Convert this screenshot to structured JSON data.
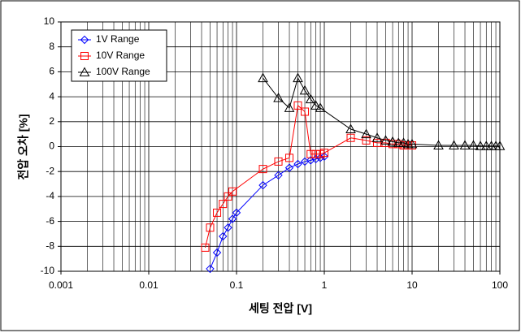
{
  "chart_data": {
    "type": "line",
    "x_label": "세팅 전압 [V]",
    "y_label": "전압 오차 [%]",
    "xlim": [
      0.001,
      100
    ],
    "xticks": [
      0.001,
      0.01,
      0.1,
      1,
      10,
      100
    ],
    "xscale": "log",
    "ylim": [
      -10,
      10
    ],
    "yticks": [
      -10,
      -8,
      -6,
      -4,
      -2,
      0,
      2,
      4,
      6,
      8,
      10
    ],
    "grid": true,
    "minor_grid": true,
    "legend": "upper left",
    "series": [
      {
        "name": "1V Range",
        "color": "#0000ff",
        "marker": "diamond",
        "x": [
          0.05,
          0.06,
          0.07,
          0.08,
          0.09,
          0.1,
          0.2,
          0.3,
          0.4,
          0.5,
          0.6,
          0.7,
          0.8,
          0.9,
          1.0
        ],
        "values": [
          -9.8,
          -8.5,
          -7.2,
          -6.5,
          -5.8,
          -5.3,
          -3.1,
          -2.3,
          -1.7,
          -1.4,
          -1.2,
          -1.1,
          -1.0,
          -0.9,
          -0.8
        ]
      },
      {
        "name": "10V Range",
        "color": "#ff0000",
        "marker": "square",
        "x": [
          0.044,
          0.05,
          0.06,
          0.07,
          0.08,
          0.09,
          0.2,
          0.3,
          0.4,
          0.5,
          0.6,
          0.7,
          0.8,
          0.9,
          1.0,
          2,
          3,
          4,
          5,
          6,
          7,
          8,
          9,
          10
        ],
        "values": [
          -8.1,
          -6.5,
          -5.3,
          -4.6,
          -4.0,
          -3.6,
          -1.8,
          -1.2,
          -0.9,
          3.3,
          2.8,
          -0.6,
          -0.6,
          -0.6,
          -0.5,
          0.7,
          0.5,
          0.3,
          0.3,
          0.2,
          0.2,
          0.1,
          0.1,
          0.1
        ]
      },
      {
        "name": "100V Range",
        "color": "#000000",
        "marker": "triangle",
        "x": [
          0.2,
          0.3,
          0.4,
          0.5,
          0.6,
          0.7,
          0.8,
          0.9,
          2,
          3,
          4,
          5,
          6,
          7,
          8,
          9,
          10,
          20,
          30,
          40,
          50,
          60,
          70,
          80,
          90,
          100
        ],
        "values": [
          5.5,
          3.9,
          3.1,
          5.5,
          4.5,
          3.8,
          3.3,
          3.1,
          1.4,
          1.0,
          0.7,
          0.5,
          0.4,
          0.3,
          0.3,
          0.2,
          0.2,
          0.1,
          0.1,
          0.1,
          0.1,
          0.05,
          0.05,
          0.05,
          0.05,
          0.05
        ]
      }
    ]
  }
}
